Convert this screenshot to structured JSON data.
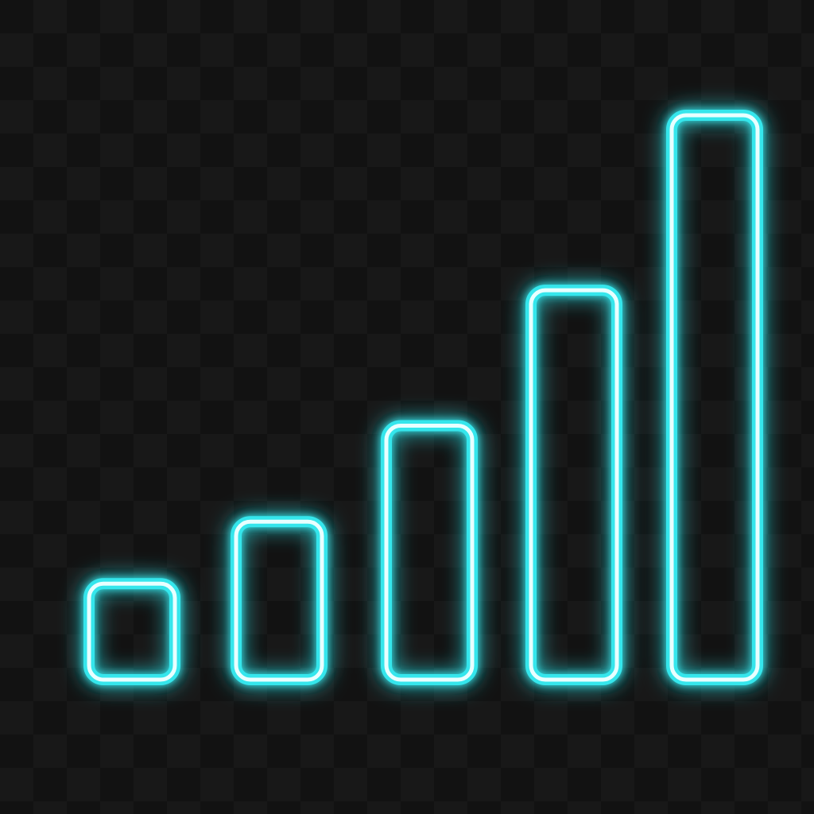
{
  "icon": {
    "name": "signal-strength-bars-icon",
    "glow_color": "#35e6ec",
    "core_color": "#e8ffff",
    "background_color": "#131313",
    "bar_count": 5,
    "relative_levels": [
      0.17,
      0.28,
      0.45,
      0.69,
      1.0
    ]
  }
}
